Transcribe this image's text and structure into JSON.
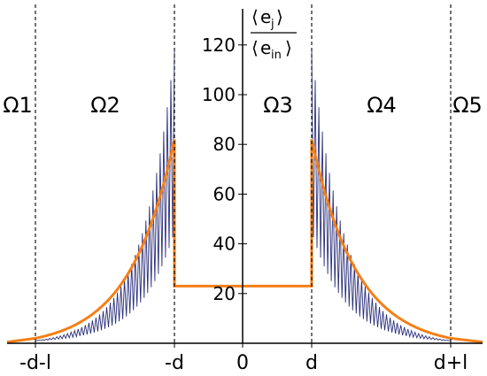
{
  "chart_data": {
    "type": "line",
    "ylabel": {
      "numerator": "e",
      "numerator_sub": "j",
      "denominator": "e",
      "denominator_sub": "in"
    },
    "regions": [
      "Ω1",
      "Ω2",
      "Ω3",
      "Ω4",
      "Ω5"
    ],
    "x_ticks": [
      "-d-l",
      "-d",
      "0",
      "d",
      "d+l"
    ],
    "y_ticks": [
      20,
      40,
      60,
      80,
      100,
      120
    ],
    "ylim": [
      0,
      125
    ],
    "boundaries": [
      "-d-l",
      "-d",
      "d",
      "d+l"
    ],
    "series": [
      {
        "style": "orange-line",
        "color": "#f57f17",
        "x": [
          "-d-l-",
          "-d-l",
          "-d",
          "-d",
          "d",
          "d",
          "d+l",
          "d+l+"
        ],
        "y": [
          0.5,
          2,
          82,
          23,
          23,
          82,
          2,
          0.5
        ]
      },
      {
        "style": "oscillation-envelope",
        "color": "#2b2f7a",
        "peak_at_inner_boundary": 118,
        "trough_at_inner_boundary": 45
      }
    ],
    "colors": {
      "orange": "#f57f17",
      "blue": "#2b2f7a",
      "axis": "#000000"
    }
  }
}
